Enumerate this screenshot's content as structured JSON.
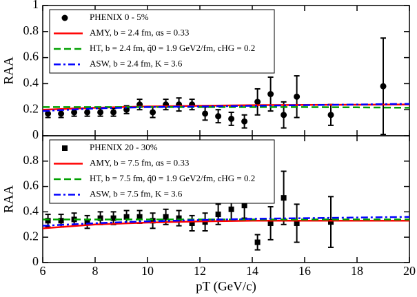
{
  "chart_data": [
    {
      "type": "scatter",
      "ylabel": "RAA",
      "legend": "upper left",
      "xlim": [
        6,
        20
      ],
      "xticks": [
        6,
        8,
        10,
        12,
        14,
        16,
        18,
        20
      ],
      "ylim": [
        0,
        1
      ],
      "yticks": [
        0,
        0.2,
        0.4,
        0.6,
        0.8,
        1
      ],
      "series": [
        {
          "name": "PHENIX 0 - 5%",
          "color": "#000000",
          "marker": "circle",
          "x": [
            6.2,
            6.7,
            7.2,
            7.7,
            8.2,
            8.7,
            9.2,
            9.7,
            10.2,
            10.7,
            11.2,
            11.7,
            12.2,
            12.7,
            13.2,
            13.7,
            14.2,
            14.7,
            15.2,
            15.7,
            17,
            19
          ],
          "values": [
            0.17,
            0.17,
            0.18,
            0.18,
            0.18,
            0.18,
            0.2,
            0.24,
            0.18,
            0.24,
            0.24,
            0.24,
            0.17,
            0.15,
            0.13,
            0.11,
            0.26,
            0.32,
            0.16,
            0.3,
            0.16,
            0.38
          ],
          "errors": [
            0.03,
            0.03,
            0.03,
            0.03,
            0.03,
            0.03,
            0.03,
            0.04,
            0.04,
            0.04,
            0.05,
            0.04,
            0.05,
            0.05,
            0.05,
            0.05,
            0.1,
            0.13,
            0.1,
            0.16,
            0.08,
            0.37
          ]
        },
        {
          "name": "AMY, b = 2.4 fm, αs = 0.33",
          "color": "#ff0000",
          "dash": "none",
          "x": [
            6,
            8,
            10,
            12,
            14,
            16,
            18,
            20
          ],
          "values": [
            0.2,
            0.215,
            0.225,
            0.23,
            0.235,
            0.237,
            0.238,
            0.24
          ]
        },
        {
          "name": "HT, b = 2.4 fm, q̂0 = 1.9 GeV2/fm, cHG = 0.2",
          "color": "#00a000",
          "dash": "10 5",
          "x": [
            6,
            8,
            10,
            12,
            14,
            16,
            18,
            20
          ],
          "values": [
            0.22,
            0.22,
            0.22,
            0.22,
            0.22,
            0.22,
            0.218,
            0.215
          ]
        },
        {
          "name": "ASW, b = 2.4 fm, K = 3.6",
          "color": "#0000ff",
          "dash": "10 4 3 4",
          "x": [
            6,
            8,
            10,
            12,
            14,
            16,
            18,
            20
          ],
          "values": [
            0.19,
            0.21,
            0.22,
            0.225,
            0.23,
            0.235,
            0.24,
            0.245
          ]
        }
      ]
    },
    {
      "type": "scatter",
      "ylabel": "RAA",
      "xlabel": "pT (GeV/c)",
      "legend": "upper left",
      "xlim": [
        6,
        20
      ],
      "xticks": [
        6,
        8,
        10,
        12,
        14,
        16,
        18,
        20
      ],
      "ylim": [
        0,
        1
      ],
      "yticks": [
        0,
        0.2,
        0.4,
        0.6,
        0.8
      ],
      "series": [
        {
          "name": "PHENIX 20 - 30%",
          "color": "#000000",
          "marker": "square",
          "x": [
            6.2,
            6.7,
            7.2,
            7.7,
            8.2,
            8.7,
            9.2,
            9.7,
            10.2,
            10.7,
            11.2,
            11.7,
            12.2,
            12.7,
            13.2,
            13.7,
            14.2,
            14.7,
            15.2,
            15.7,
            17
          ],
          "values": [
            0.33,
            0.33,
            0.34,
            0.32,
            0.35,
            0.35,
            0.36,
            0.36,
            0.33,
            0.36,
            0.35,
            0.31,
            0.32,
            0.38,
            0.42,
            0.45,
            0.16,
            0.31,
            0.51,
            0.31,
            0.32
          ],
          "errors": [
            0.05,
            0.05,
            0.05,
            0.05,
            0.05,
            0.05,
            0.05,
            0.05,
            0.06,
            0.06,
            0.06,
            0.06,
            0.07,
            0.08,
            0.09,
            0.1,
            0.06,
            0.13,
            0.21,
            0.15,
            0.2
          ]
        },
        {
          "name": "AMY, b = 7.5 fm, αs = 0.33",
          "color": "#ff0000",
          "dash": "none",
          "x": [
            6,
            8,
            10,
            12,
            14,
            16,
            18,
            20
          ],
          "values": [
            0.27,
            0.3,
            0.315,
            0.325,
            0.33,
            0.33,
            0.33,
            0.33
          ]
        },
        {
          "name": "HT, b = 7.5 fm, q̂0 = 1.9 GeV2/fm, cHG = 0.2",
          "color": "#00a000",
          "dash": "10 5",
          "x": [
            6,
            8,
            10,
            12,
            14,
            16,
            18,
            20
          ],
          "values": [
            0.34,
            0.34,
            0.34,
            0.34,
            0.34,
            0.34,
            0.34,
            0.34
          ]
        },
        {
          "name": "ASW, b = 7.5 fm, K = 3.6",
          "color": "#0000ff",
          "dash": "10 4 3 4",
          "x": [
            6,
            8,
            10,
            12,
            14,
            16,
            18,
            20
          ],
          "values": [
            0.29,
            0.31,
            0.325,
            0.335,
            0.345,
            0.35,
            0.355,
            0.36
          ]
        }
      ]
    }
  ]
}
